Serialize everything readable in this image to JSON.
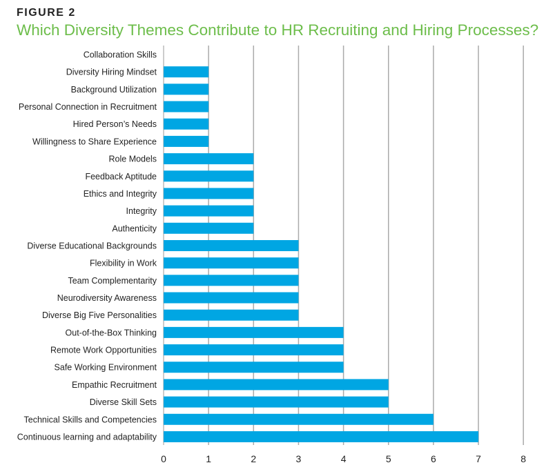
{
  "figure_label": "FIGURE 2",
  "chart_data": {
    "type": "bar",
    "orientation": "horizontal",
    "title": "Which Diversity Themes Contribute to HR Recruiting and Hiring Processes?",
    "categories": [
      "Collaboration Skills",
      "Diversity Hiring Mindset",
      "Background Utilization",
      "Personal Connection in Recruitment",
      "Hired Person’s Needs",
      "Willingness to Share Experience",
      "Role Models",
      "Feedback Aptitude",
      "Ethics and Integrity",
      "Integrity",
      "Authenticity",
      "Diverse Educational Backgrounds",
      "Flexibility in Work",
      "Team Complementarity",
      "Neurodiversity Awareness",
      "Diverse Big Five Personalities",
      "Out-of-the-Box Thinking",
      "Remote Work Opportunities",
      "Safe Working Environment",
      "Empathic Recruitment",
      "Diverse Skill Sets",
      "Technical Skills and Competencies",
      "Continuous learning and adaptability"
    ],
    "values": [
      0,
      1,
      1,
      1,
      1,
      1,
      2,
      2,
      2,
      2,
      2,
      3,
      3,
      3,
      3,
      3,
      4,
      4,
      4,
      5,
      5,
      6,
      7
    ],
    "xlim": [
      0,
      8
    ],
    "xticks": [
      "0",
      "1",
      "2",
      "3",
      "4",
      "5",
      "6",
      "7",
      "8"
    ],
    "grid": true,
    "bar_color": "#00a6e3",
    "title_color": "#6cbd4a"
  }
}
